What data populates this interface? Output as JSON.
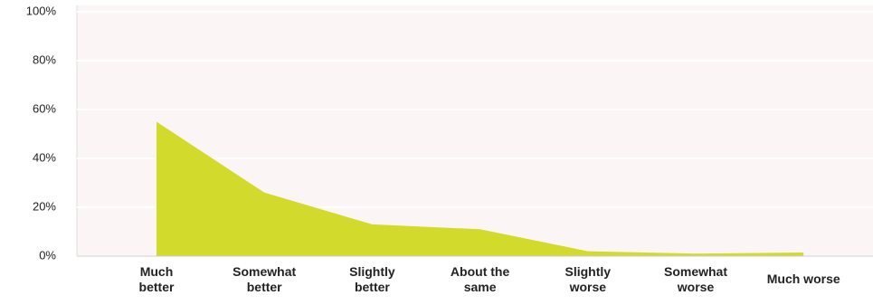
{
  "chart_data": {
    "type": "area",
    "categories": [
      "Much better",
      "Somewhat better",
      "Slightly better",
      "About the same",
      "Slightly worse",
      "Somewhat worse",
      "Much worse"
    ],
    "values": [
      55,
      26,
      13,
      11,
      2,
      1,
      1.5
    ],
    "color": "#d2da2c",
    "ylim": [
      0,
      100
    ],
    "yticks": [
      {
        "value": 0,
        "label": "0%"
      },
      {
        "value": 20,
        "label": "20%"
      },
      {
        "value": 40,
        "label": "40%"
      },
      {
        "value": 60,
        "label": "60%"
      },
      {
        "value": 80,
        "label": "80%"
      },
      {
        "value": 100,
        "label": "100%"
      }
    ],
    "grid": true
  }
}
